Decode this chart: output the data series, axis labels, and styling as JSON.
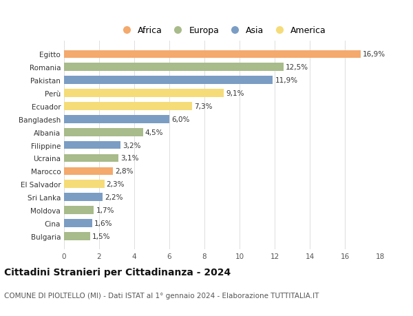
{
  "categories": [
    "Egitto",
    "Romania",
    "Pakistan",
    "Perù",
    "Ecuador",
    "Bangladesh",
    "Albania",
    "Filippine",
    "Ucraina",
    "Marocco",
    "El Salvador",
    "Sri Lanka",
    "Moldova",
    "Cina",
    "Bulgaria"
  ],
  "values": [
    16.9,
    12.5,
    11.9,
    9.1,
    7.3,
    6.0,
    4.5,
    3.2,
    3.1,
    2.8,
    2.3,
    2.2,
    1.7,
    1.6,
    1.5
  ],
  "continents": [
    "Africa",
    "Europa",
    "Asia",
    "America",
    "America",
    "Asia",
    "Europa",
    "Asia",
    "Europa",
    "Africa",
    "America",
    "Asia",
    "Europa",
    "Asia",
    "Europa"
  ],
  "continent_colors": {
    "Africa": "#F4A96D",
    "Europa": "#A8BB8A",
    "Asia": "#7B9DC4",
    "America": "#F5DC78"
  },
  "legend_order": [
    "Africa",
    "Europa",
    "Asia",
    "America"
  ],
  "title": "Cittadini Stranieri per Cittadinanza - 2024",
  "subtitle": "COMUNE DI PIOLTELLO (MI) - Dati ISTAT al 1° gennaio 2024 - Elaborazione TUTTITALIA.IT",
  "xlim": [
    0,
    18
  ],
  "xticks": [
    0,
    2,
    4,
    6,
    8,
    10,
    12,
    14,
    16,
    18
  ],
  "bg_color": "#FFFFFF",
  "grid_color": "#DDDDDD",
  "bar_height": 0.62,
  "label_fontsize": 7.5,
  "title_fontsize": 10,
  "subtitle_fontsize": 7.5,
  "ytick_fontsize": 7.5,
  "xtick_fontsize": 7.5
}
